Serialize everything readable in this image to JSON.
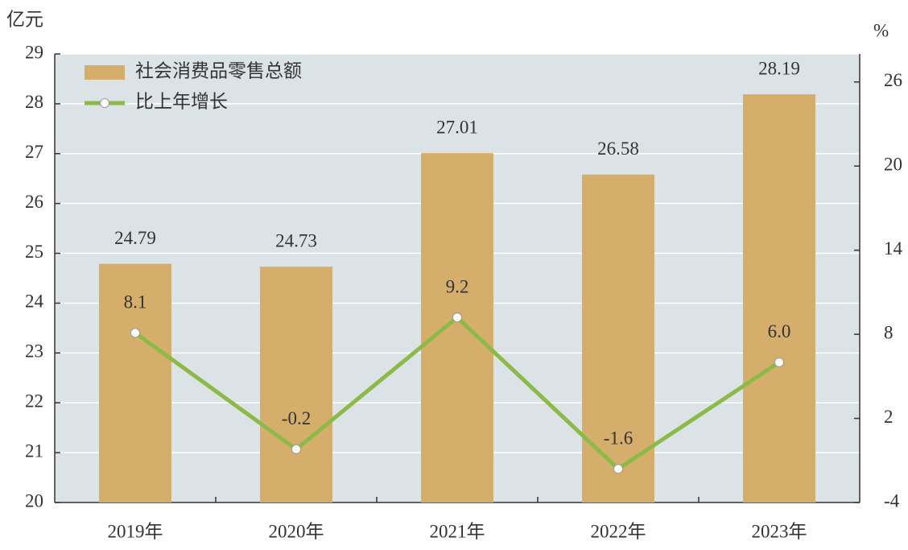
{
  "chart_data": {
    "type": "bar",
    "y_label": "亿元",
    "y2_label": "%",
    "categories": [
      "2019年",
      "2020年",
      "2021年",
      "2022年",
      "2023年"
    ],
    "series": [
      {
        "name": "社会消费品零售总额",
        "type": "bar",
        "color": "#d6ae6b",
        "values": [
          24.79,
          24.73,
          27.01,
          26.58,
          28.19
        ]
      },
      {
        "name": "比上年增长",
        "type": "line",
        "axis": "y2",
        "color": "#8cba48",
        "values": [
          8.1,
          -0.2,
          9.2,
          -1.6,
          6.0
        ],
        "value_labels": [
          "8.1",
          "-0.2",
          "9.2",
          "-1.6",
          "6.0"
        ]
      }
    ],
    "ylim": [
      20,
      29
    ],
    "yticks": [
      20,
      21,
      22,
      23,
      24,
      25,
      26,
      27,
      28,
      29
    ],
    "y2lim": [
      -4,
      28
    ],
    "y2ticks": [
      -4,
      2,
      8,
      14,
      20,
      26
    ],
    "grid": true,
    "legend": "top-left",
    "background": "#dce3e6"
  }
}
